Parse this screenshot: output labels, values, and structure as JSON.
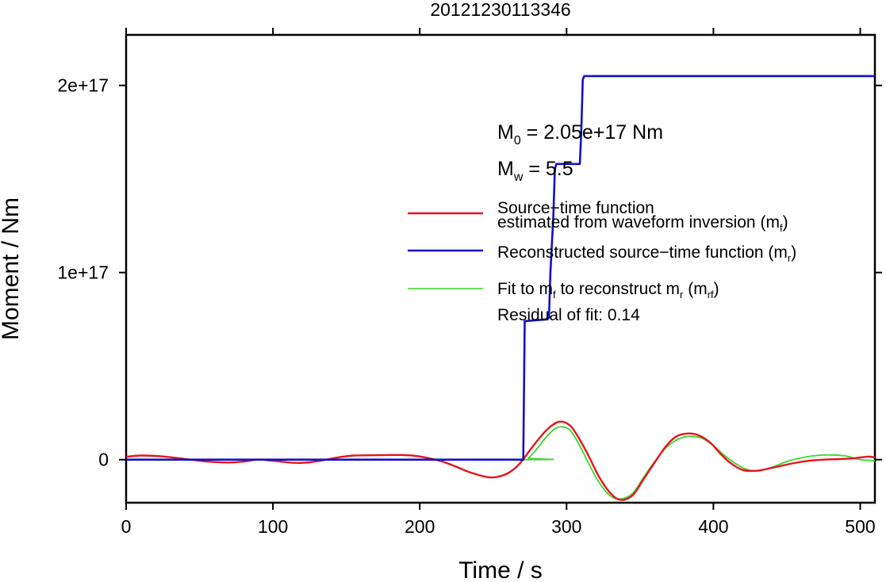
{
  "chart_data": {
    "type": "line",
    "title": "20121230113346",
    "xlabel": "Time / s",
    "ylabel": "Moment / Nm",
    "xlim": [
      0,
      510
    ],
    "ylim": [
      -2.3e+16,
      2.27e+17
    ],
    "xticks": [
      0,
      100,
      200,
      300,
      400,
      500
    ],
    "xtick_labels": [
      "0",
      "100",
      "200",
      "300",
      "400",
      "500"
    ],
    "yticks": [
      0,
      1e+17,
      2e+17
    ],
    "ytick_labels": [
      "0",
      "1e+17",
      "2e+17"
    ],
    "grid": false,
    "legend_position": "right",
    "annotations": {
      "m0_label": "M",
      "m0_sub": "0",
      "m0_value": " = 2.05e+17 Nm",
      "mw_label": "M",
      "mw_sub": "w",
      "mw_value": " = 5.5",
      "residual": "Residual of fit: 0.14"
    },
    "legend": [
      {
        "line1": "Source−time function",
        "line2_pre": "estimated from waveform inversion (m",
        "sub": "f",
        "post": ")",
        "color": "#e8141c"
      },
      {
        "line1_pre": "Reconstructed source−time function (m",
        "sub": "r",
        "post": ")",
        "color": "#1410c8"
      },
      {
        "pre": "Fit to m",
        "sub1": "f",
        "mid": " to reconstruct m",
        "sub2": "r",
        "mid2": " (m",
        "sub3": "rf",
        "post": ")",
        "color": "#3ad62a"
      }
    ],
    "series": [
      {
        "name": "Source−time function estimated from waveform inversion (mf)",
        "color": "#e8141c",
        "x": [
          0,
          10,
          25,
          40,
          55,
          70,
          80,
          90,
          100,
          115,
          125,
          135,
          145,
          155,
          170,
          185,
          195,
          205,
          215,
          225,
          235,
          248,
          258,
          265,
          270,
          275,
          282,
          288,
          295,
          302,
          308,
          315,
          322,
          330,
          337,
          345,
          352,
          360,
          368,
          375,
          383,
          390,
          398,
          405,
          412,
          420,
          428,
          435,
          445,
          455,
          465,
          475,
          485,
          495,
          505,
          510
        ],
        "y": [
          1500000000000000.0,
          2200000000000000.0,
          1700000000000000.0,
          400000000000000.0,
          -1000000000000000.0,
          -1500000000000000.0,
          -1000000000000000.0,
          0.0,
          -600000000000000.0,
          -1700000000000000.0,
          -1400000000000000.0,
          -200000000000000.0,
          1300000000000000.0,
          2200000000000000.0,
          2400000000000000.0,
          2500000000000000.0,
          2200000000000000.0,
          1000000000000000.0,
          -900000000000000.0,
          -3800000000000000.0,
          -7000000000000000.0,
          -9500000000000000.0,
          -8000000000000000.0,
          -4500000000000000.0,
          -300000000000000.0,
          5000000000000000.0,
          1.2e+16,
          1.7e+16,
          2.03e+16,
          1.85e+16,
          1.2e+16,
          2000000000000000.0,
          -9000000000000000.0,
          -1.8e+16,
          -2.15e+16,
          -1.9e+16,
          -1.1e+16,
          -1500000000000000.0,
          7500000000000000.0,
          1.25e+16,
          1.4e+16,
          1.3e+16,
          9000000000000000.0,
          3000000000000000.0,
          -2000000000000000.0,
          -5500000000000000.0,
          -6000000000000000.0,
          -5200000000000000.0,
          -3500000000000000.0,
          -1800000000000000.0,
          -600000000000000.0,
          0.0,
          300000000000000.0,
          700000000000000.0,
          1600000000000000.0,
          1200000000000000.0
        ]
      },
      {
        "name": "Reconstructed source−time function (mr)",
        "color": "#1410c8",
        "x": [
          0,
          270.5,
          271.5,
          287,
          288,
          289,
          291,
          292,
          293,
          294,
          309,
          310,
          311,
          312,
          510
        ],
        "y": [
          0,
          0,
          7.4e+16,
          7.5e+16,
          7.6e+16,
          1e+17,
          1.3e+17,
          1.55e+17,
          1.58e+17,
          1.58e+17,
          1.58e+17,
          1.75e+17,
          2.03e+17,
          2.05e+17,
          2.05e+17
        ]
      },
      {
        "name": "Fit to mf to reconstruct mr (mrf)",
        "color": "#3ad62a",
        "x": [
          0,
          270,
          274,
          280,
          286,
          292,
          297,
          302,
          308,
          315,
          322,
          330,
          337,
          345,
          352,
          360,
          368,
          376,
          384,
          392,
          400,
          408,
          416,
          424,
          432,
          440,
          450,
          460,
          470,
          480,
          490,
          500,
          510
        ],
        "y": [
          0,
          0,
          1000000000000000.0,
          6000000000000000.0,
          1.2e+16,
          1.65e+16,
          1.75e+16,
          1.6e+16,
          9000000000000000.0,
          -2000000000000000.0,
          -1.2e+16,
          -1.95e+16,
          -2.1e+16,
          -1.8e+16,
          -1e+16,
          -1000000000000000.0,
          6500000000000000.0,
          1.1e+16,
          1.25e+16,
          1.15e+16,
          7500000000000000.0,
          2000000000000000.0,
          -2500000000000000.0,
          -5500000000000000.0,
          -5800000000000000.0,
          -4000000000000000.0,
          -1000000000000000.0,
          1000000000000000.0,
          2200000000000000.0,
          2500000000000000.0,
          2000000000000000.0,
          0.0,
          -500000000000000.0
        ]
      }
    ]
  }
}
